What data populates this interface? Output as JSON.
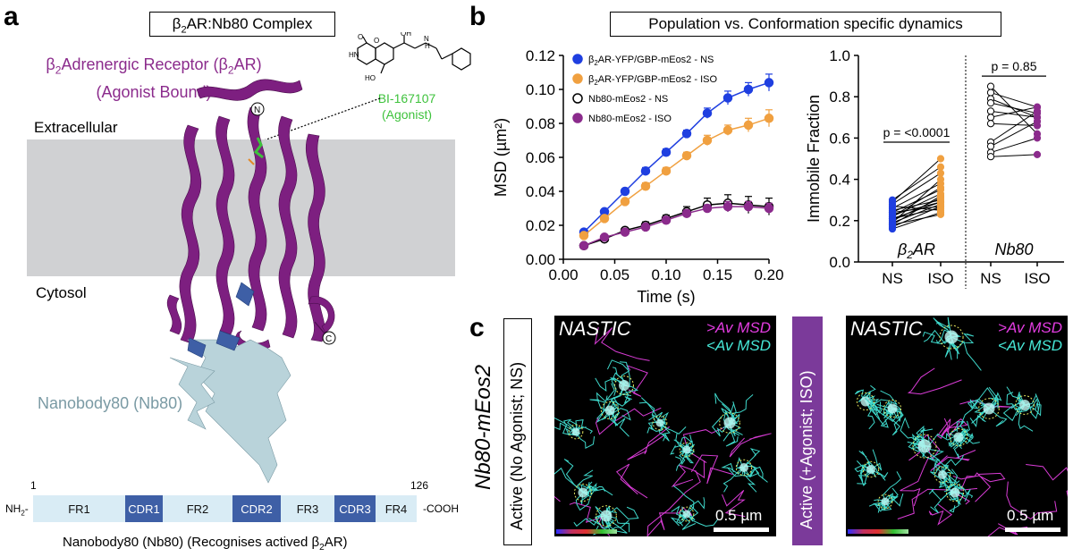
{
  "panel_a": {
    "letter": "a",
    "title_pre": "β",
    "title_sub": "2",
    "title_post": "AR:Nb80 Complex",
    "receptor_line1_pre": "β",
    "receptor_line1_sub": "2",
    "receptor_line1_mid": "Adrenergic Receptor (β",
    "receptor_line1_sub2": "2",
    "receptor_line1_post": "AR)",
    "receptor_line2": "(Agonist Bound)",
    "agonist_name": "BI-167107",
    "agonist_label": "(Agonist)",
    "extracellular": "Extracellular",
    "cytosol": "Cytosol",
    "nterm": "N",
    "cterm": "C",
    "nanobody_label": "Nanobody80 (Nb80)",
    "domain_start": "1",
    "domain_end": "126",
    "nh2": "NH",
    "nh2_sub": "2",
    "nh2_dash": "-",
    "cooh": "-COOH",
    "domains": [
      "FR1",
      "CDR1",
      "FR2",
      "CDR2",
      "FR3",
      "CDR3",
      "FR4"
    ],
    "caption_pre": "Nanobody80 (Nb80) (Recognises actived β",
    "caption_sub": "2",
    "caption_post": "AR)",
    "chem_labels": [
      "O",
      "HN",
      "O",
      "OH",
      "HO",
      "N",
      "H"
    ]
  },
  "panel_b": {
    "letter": "b",
    "title": "Population vs. Conformation specific dynamics"
  },
  "panel_c": {
    "letter": "c",
    "row_label": "Nb80-mEos2",
    "left_side_label": "Active (No Agonist; NS)",
    "right_side_label": "Active (+Agonist; ISO)",
    "micro_title": "NASTIC",
    "legend_gt": ">Av MSD",
    "legend_lt": "<Av MSD",
    "scale": "0.5 µm"
  },
  "colors": {
    "purple": "#8b2b8c",
    "green": "#3ec23c",
    "blue": "#1f3fe0",
    "orange": "#f0a040",
    "membrane": "#d0d1d3",
    "magenta_track": "#d93cd6",
    "cyan_track": "#3fd9cc"
  },
  "chart_data": [
    {
      "type": "line",
      "xlabel": "Time (s)",
      "ylabel": "MSD (µm²)",
      "xlim": [
        0,
        0.2
      ],
      "ylim": [
        0,
        0.12
      ],
      "xticks": [
        "0.00",
        "0.05",
        "0.10",
        "0.15",
        "0.20"
      ],
      "yticks": [
        "0.00",
        "0.02",
        "0.04",
        "0.06",
        "0.08",
        "0.10",
        "0.12"
      ],
      "legend_position": "top-left",
      "x": [
        0.02,
        0.04,
        0.06,
        0.08,
        0.1,
        0.12,
        0.14,
        0.16,
        0.18,
        0.2
      ],
      "series": [
        {
          "name": "β2AR-YFP/GBP-mEos2 - NS",
          "color": "#1f3fe0",
          "fill": "filled",
          "values": [
            0.016,
            0.028,
            0.04,
            0.052,
            0.063,
            0.074,
            0.086,
            0.095,
            0.1,
            0.104
          ],
          "err": [
            0.001,
            0.001,
            0.001,
            0.002,
            0.002,
            0.002,
            0.003,
            0.004,
            0.004,
            0.005
          ]
        },
        {
          "name": "β2AR-YFP/GBP-mEos2 - ISO",
          "color": "#f0a040",
          "fill": "filled",
          "values": [
            0.014,
            0.024,
            0.034,
            0.043,
            0.052,
            0.061,
            0.07,
            0.076,
            0.079,
            0.083
          ],
          "err": [
            0.001,
            0.001,
            0.001,
            0.002,
            0.002,
            0.002,
            0.003,
            0.003,
            0.004,
            0.005
          ]
        },
        {
          "name": "Nb80-mEos2 - NS",
          "color": "#000000",
          "fill": "open",
          "values": [
            0.008,
            0.012,
            0.017,
            0.02,
            0.024,
            0.028,
            0.032,
            0.033,
            0.032,
            0.031
          ],
          "err": [
            0.001,
            0.001,
            0.001,
            0.002,
            0.002,
            0.003,
            0.004,
            0.005,
            0.005,
            0.005
          ]
        },
        {
          "name": "Nb80-mEos2 - ISO",
          "color": "#8b2b8c",
          "fill": "filled",
          "values": [
            0.008,
            0.013,
            0.016,
            0.019,
            0.023,
            0.027,
            0.03,
            0.031,
            0.031,
            0.03
          ],
          "err": [
            0.001,
            0.001,
            0.001,
            0.001,
            0.002,
            0.002,
            0.002,
            0.003,
            0.003,
            0.003
          ]
        }
      ]
    },
    {
      "type": "scatter",
      "ylabel": "Immobile Fraction",
      "ylim": [
        0,
        1.0
      ],
      "yticks": [
        "0.0",
        "0.2",
        "0.4",
        "0.6",
        "0.8",
        "1.0"
      ],
      "categories": [
        "NS",
        "ISO",
        "NS",
        "ISO"
      ],
      "groups": [
        {
          "name": "β2AR",
          "p_label": "p = <0.0001",
          "ns_color": "#1f3fe0",
          "iso_color": "#f0a040",
          "pairs": [
            [
              0.16,
              0.24
            ],
            [
              0.17,
              0.27
            ],
            [
              0.18,
              0.23
            ],
            [
              0.19,
              0.28
            ],
            [
              0.2,
              0.31
            ],
            [
              0.21,
              0.26
            ],
            [
              0.22,
              0.33
            ],
            [
              0.23,
              0.29
            ],
            [
              0.24,
              0.35
            ],
            [
              0.25,
              0.3
            ],
            [
              0.26,
              0.38
            ],
            [
              0.27,
              0.25
            ],
            [
              0.28,
              0.43
            ],
            [
              0.29,
              0.5
            ],
            [
              0.3,
              0.46
            ],
            [
              0.19,
              0.4
            ],
            [
              0.22,
              0.36
            ],
            [
              0.24,
              0.27
            ],
            [
              0.18,
              0.32
            ],
            [
              0.21,
              0.29
            ]
          ]
        },
        {
          "name": "Nb80",
          "p_label": "p = 0.85",
          "ns_color": "#ffffff",
          "iso_color": "#8b2b8c",
          "pairs": [
            [
              0.85,
              0.62
            ],
            [
              0.82,
              0.75
            ],
            [
              0.79,
              0.7
            ],
            [
              0.77,
              0.72
            ],
            [
              0.73,
              0.7
            ],
            [
              0.7,
              0.75
            ],
            [
              0.67,
              0.66
            ],
            [
              0.58,
              0.73
            ],
            [
              0.56,
              0.68
            ],
            [
              0.53,
              0.6
            ],
            [
              0.51,
              0.52
            ]
          ]
        }
      ]
    }
  ]
}
